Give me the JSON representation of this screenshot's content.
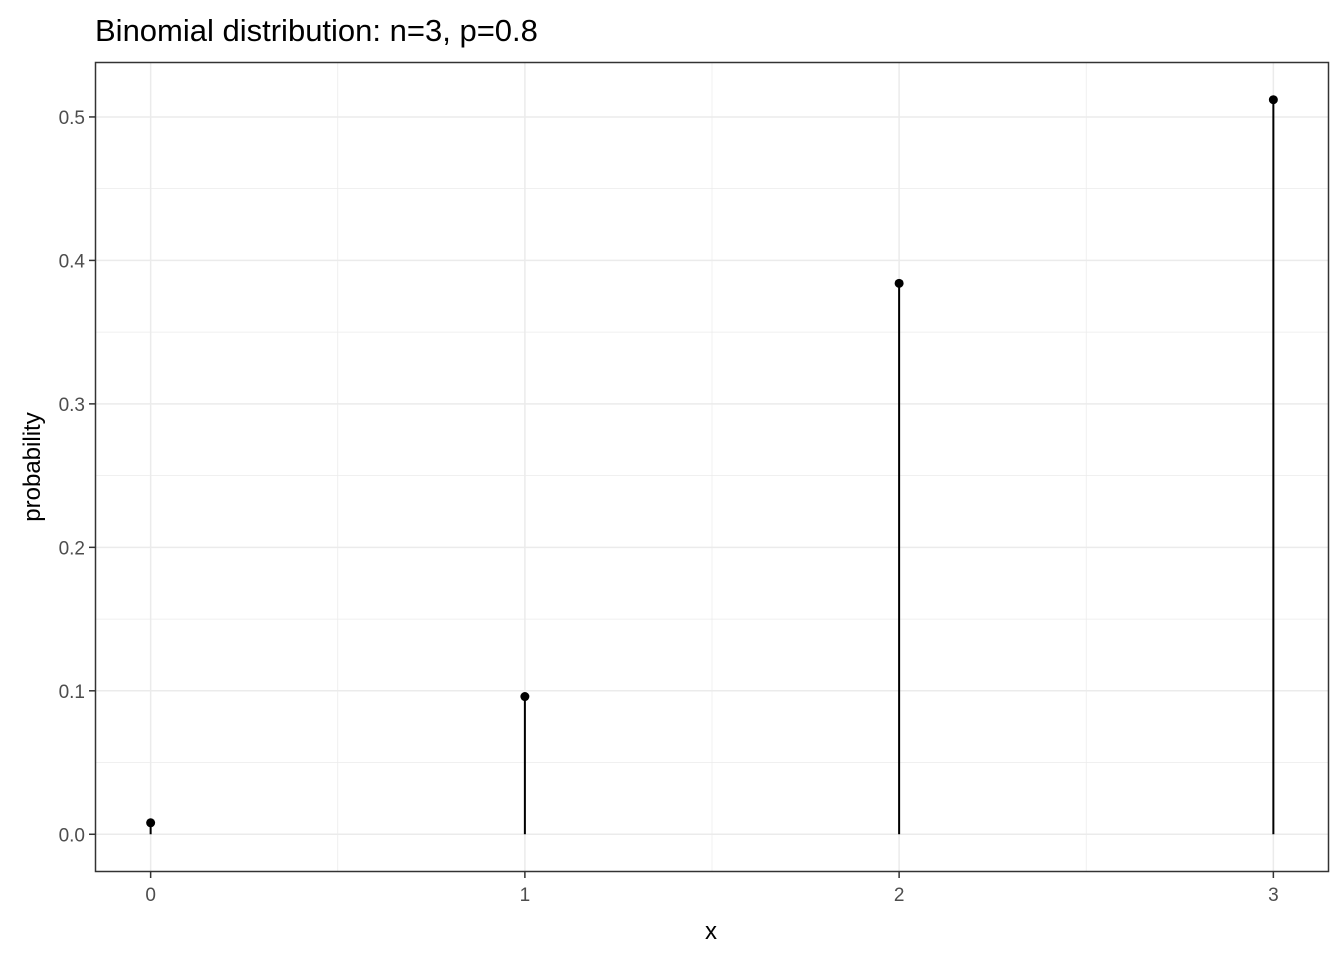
{
  "chart_data": {
    "type": "lollipop",
    "title": "Binomial distribution: n=3, p=0.8",
    "xlabel": "x",
    "ylabel": "probability",
    "x": [
      0,
      1,
      2,
      3
    ],
    "values": [
      0.008,
      0.096,
      0.384,
      0.512
    ],
    "xlim": [
      -0.146,
      3.146
    ],
    "ylim": [
      -0.0256,
      0.5376
    ],
    "xticks": [
      "0",
      "1",
      "2",
      "3"
    ],
    "yticks": [
      "0.0",
      "0.1",
      "0.2",
      "0.3",
      "0.4",
      "0.5"
    ],
    "grid": true,
    "legend": "none",
    "colors": {
      "marks": "#000000",
      "grid": "#ebebeb",
      "tick_text": "#4d4d4d"
    }
  }
}
